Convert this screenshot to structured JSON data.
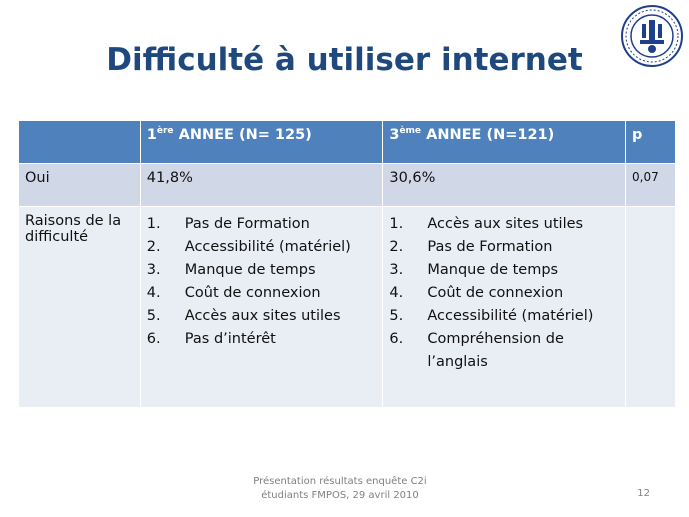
{
  "slide": {
    "title": "Difficulté à utiliser internet",
    "logo": {
      "icon": "university-seal-icon",
      "ring_text": "UNIVERSITE DE BAMAKO"
    },
    "table": {
      "header": {
        "col1": "",
        "col2_prefix": "1",
        "col2_sup": "ère",
        "col2_rest": " ANNEE (N=  125)",
        "col3_prefix": "3",
        "col3_sup": "ème",
        "col3_rest": " ANNEE (N=121)",
        "col4": "p"
      },
      "row_oui": {
        "label": "Oui",
        "year1": "41,8%",
        "year3": "30,6%",
        "p": "0,07"
      },
      "row_raisons": {
        "label": "Raisons de la difficulté",
        "year1": [
          "Pas de Formation",
          "Accessibilité (matériel)",
          "Manque de temps",
          "Coût de connexion",
          "Accès aux sites utiles",
          "Pas d’intérêt"
        ],
        "year3": [
          "Accès aux sites utiles",
          "Pas de Formation",
          "Manque de temps",
          "Coût de connexion",
          "Accessibilité (matériel)",
          "Compréhension de l’anglais"
        ]
      }
    },
    "footer": {
      "line1": "Présentation résultats enquête C2i",
      "line2": "étudiants FMPOS, 29 avril 2010"
    },
    "page_number": "12",
    "colors": {
      "title": "#1f497d",
      "header_bg": "#4f81bd",
      "row1_bg": "#d0d8e8",
      "row2_bg": "#e9edf4"
    }
  }
}
